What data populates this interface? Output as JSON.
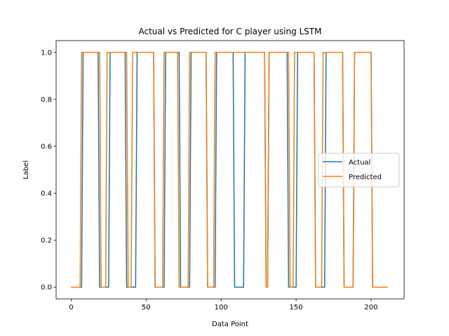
{
  "chart_data": {
    "type": "line",
    "title": "Actual vs Predicted for C player using LSTM",
    "xlabel": "Data Point",
    "ylabel": "Label",
    "xlim": [
      -10,
      222
    ],
    "ylim": [
      -0.05,
      1.05
    ],
    "xticks": [
      0,
      50,
      100,
      150,
      200
    ],
    "yticks": [
      0.0,
      0.2,
      0.4,
      0.6,
      0.8,
      1.0
    ],
    "xtick_labels": [
      "0",
      "50",
      "100",
      "150",
      "200"
    ],
    "ytick_labels": [
      "0.0",
      "0.2",
      "0.4",
      "0.6",
      "0.8",
      "1.0"
    ],
    "grid": false,
    "legend_position": "center-right",
    "series": [
      {
        "name": "Actual",
        "color": "#1f77b4",
        "x": [
          0,
          7,
          8,
          18,
          19,
          25,
          26,
          36,
          37,
          43,
          44,
          55,
          56,
          62,
          63,
          72,
          73,
          79,
          80,
          90,
          91,
          96,
          97,
          108,
          109,
          115,
          116,
          129,
          130,
          131,
          132,
          144,
          145,
          150,
          151,
          162,
          163,
          169,
          170,
          181,
          182,
          188,
          189,
          200,
          201,
          211
        ],
        "y": [
          0,
          0,
          1,
          1,
          0,
          0,
          1,
          1,
          0,
          0,
          1,
          1,
          0,
          0,
          1,
          1,
          0,
          0,
          1,
          1,
          0,
          0,
          1,
          1,
          0,
          0,
          1,
          1,
          0,
          0,
          1,
          1,
          0,
          0,
          1,
          1,
          0,
          0,
          1,
          1,
          0,
          0,
          1,
          1,
          0,
          0
        ]
      },
      {
        "name": "Predicted",
        "color": "#ff7f0e",
        "x": [
          0,
          6,
          7,
          19,
          20,
          23,
          24,
          37,
          38,
          40,
          41,
          55,
          56,
          61,
          62,
          71,
          72,
          78,
          79,
          90,
          91,
          95,
          96,
          129,
          130,
          131,
          132,
          145,
          146,
          148,
          149,
          162,
          163,
          167,
          168,
          181,
          182,
          188,
          189,
          200,
          201,
          211
        ],
        "y": [
          0,
          0,
          1,
          1,
          0,
          0,
          1,
          1,
          0,
          0,
          1,
          1,
          0,
          0,
          1,
          1,
          0,
          0,
          1,
          1,
          0,
          0,
          1,
          1,
          0,
          0,
          1,
          1,
          0,
          0,
          1,
          1,
          0,
          0,
          1,
          1,
          0,
          0,
          1,
          1,
          0,
          0
        ]
      }
    ]
  }
}
